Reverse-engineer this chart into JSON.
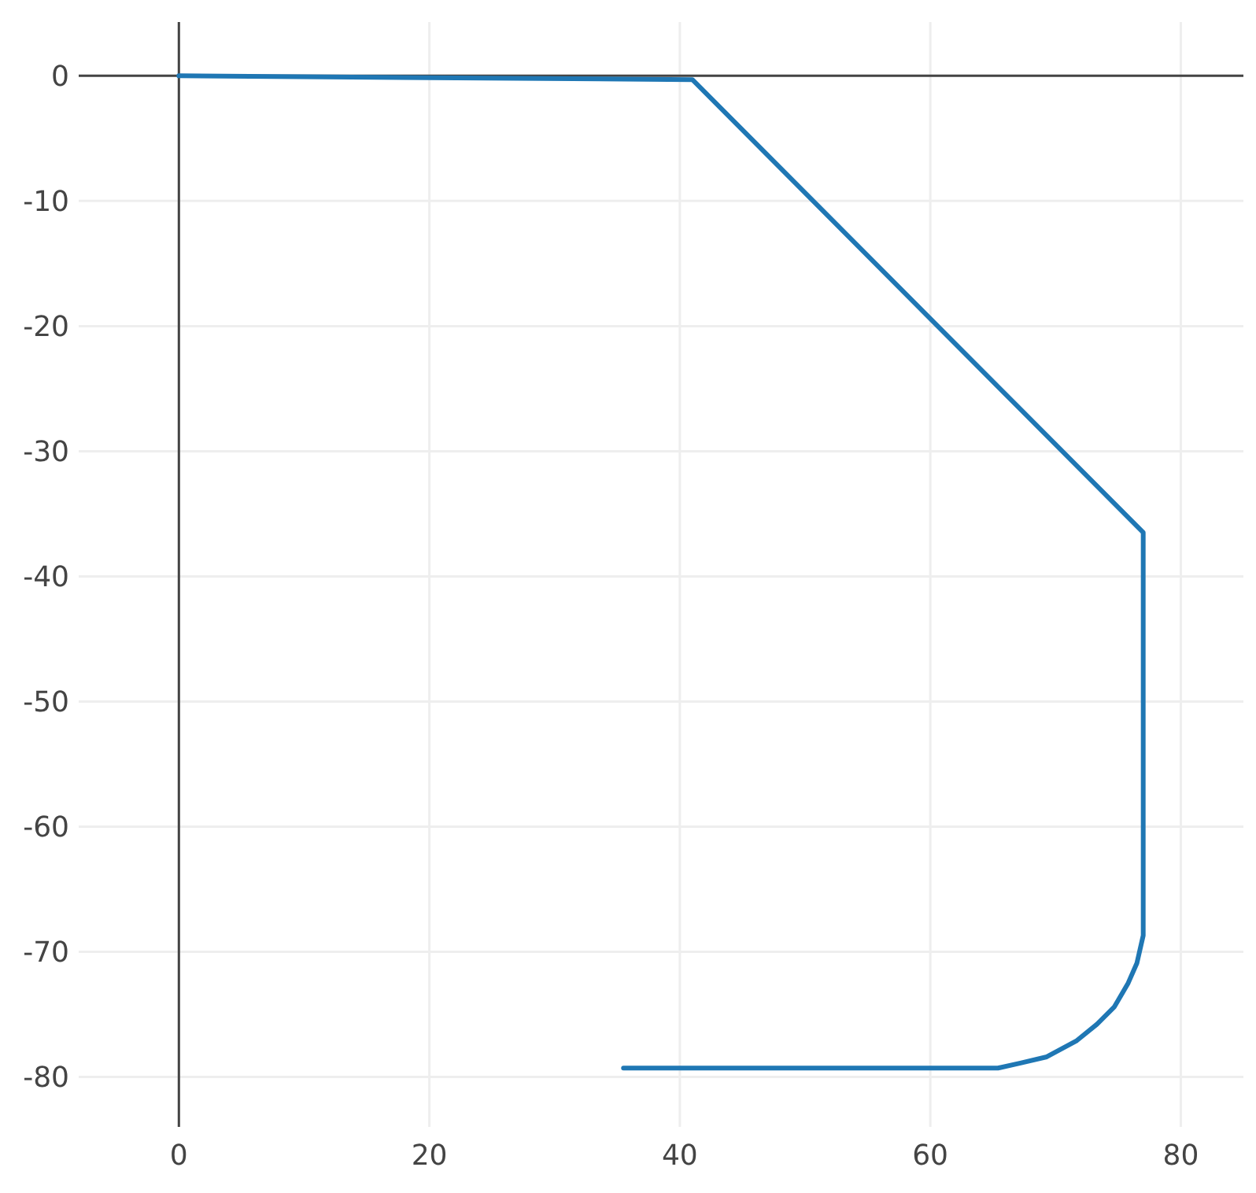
{
  "chart_data": {
    "type": "line",
    "x": [
      0,
      41,
      77,
      77,
      77,
      76.5,
      75.8,
      74.7,
      73.3,
      71.7,
      69.3,
      67.2,
      65.4,
      35.5
    ],
    "series": [
      {
        "color": "#1f77b4",
        "values": [
          0,
          -0.3,
          -36.5,
          -60,
          -68.7,
          -70.9,
          -72.5,
          -74.4,
          -75.8,
          -77.1,
          -78.4,
          -78.9,
          -79.3,
          -79.3
        ]
      }
    ],
    "xlim": [
      -8,
      85
    ],
    "ylim": [
      -84,
      4.3
    ],
    "xticks": [
      0,
      20,
      40,
      60,
      80
    ],
    "yticks": [
      0,
      -10,
      -20,
      -30,
      -40,
      -50,
      -60,
      -70,
      -80
    ],
    "grid": true,
    "marker": "none",
    "line_style": "solid"
  }
}
